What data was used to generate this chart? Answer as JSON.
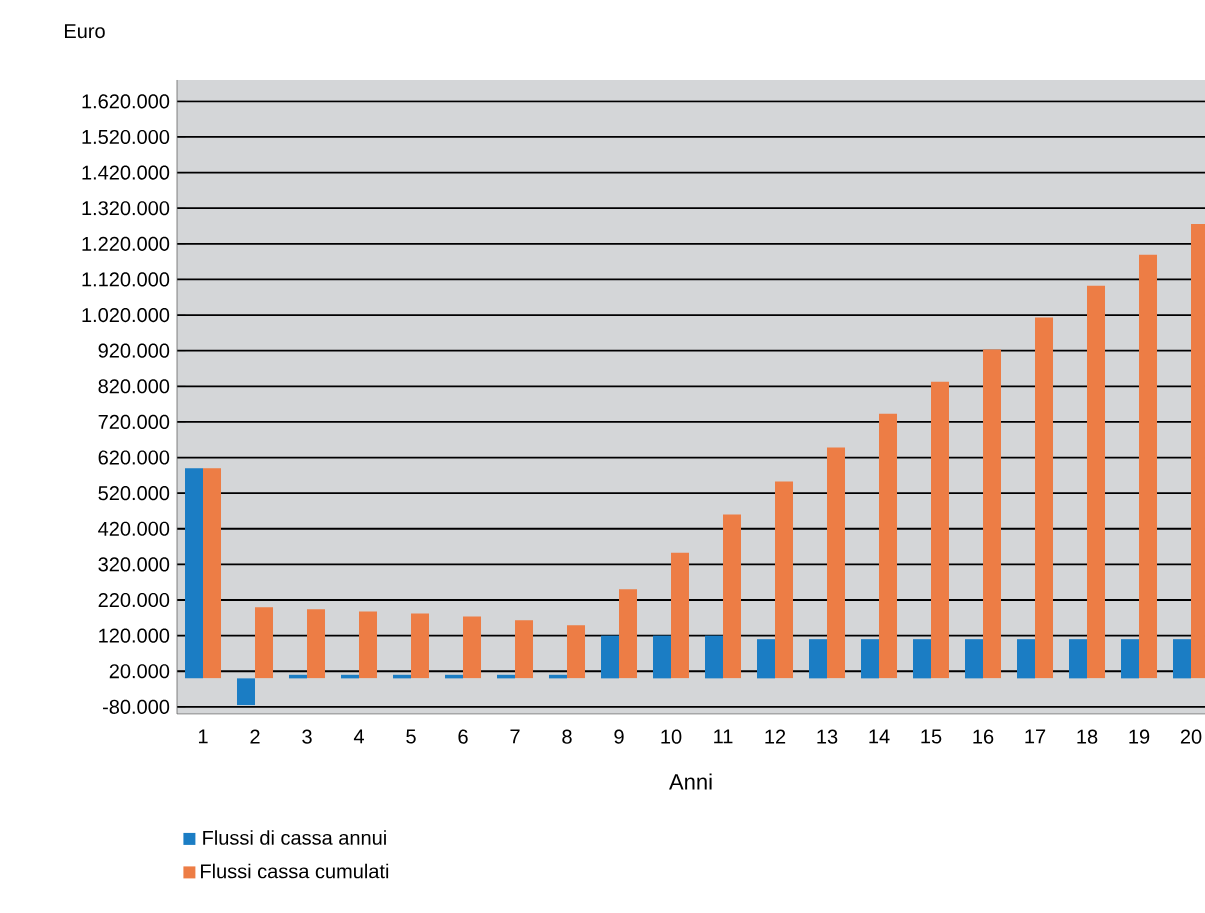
{
  "chart_data": {
    "type": "bar",
    "xlabel": "Anni",
    "ylabel": "Euro",
    "categories": [
      "1",
      "2",
      "3",
      "4",
      "5",
      "6",
      "7",
      "8",
      "9",
      "10",
      "11",
      "12",
      "13",
      "14",
      "15",
      "16",
      "17",
      "18",
      "19",
      "20"
    ],
    "series": [
      {
        "name": "Flussi di cassa annui",
        "color": "#1b7dc4",
        "values": [
          590000,
          -75000,
          10000,
          10000,
          10000,
          10000,
          10000,
          10000,
          120000,
          120000,
          120000,
          110000,
          110000,
          110000,
          110000,
          110000,
          110000,
          110000,
          110000,
          110000
        ]
      },
      {
        "name": "Flussi cassa cumulati",
        "color": "#ed7d45",
        "values": [
          590000,
          200000,
          194000,
          188000,
          182000,
          174000,
          163000,
          149000,
          250000,
          353000,
          460000,
          553000,
          648000,
          743000,
          833000,
          923000,
          1013000,
          1102000,
          1189000,
          1276000
        ]
      }
    ],
    "ylim": [
      -100000,
      1680000
    ],
    "yticks": [
      {
        "value": -80000,
        "label": "-80.000"
      },
      {
        "value": 20000,
        "label": "20.000"
      },
      {
        "value": 120000,
        "label": "120.000"
      },
      {
        "value": 220000,
        "label": "220.000"
      },
      {
        "value": 320000,
        "label": "320.000"
      },
      {
        "value": 420000,
        "label": "420.000"
      },
      {
        "value": 520000,
        "label": "520.000"
      },
      {
        "value": 620000,
        "label": "620.000"
      },
      {
        "value": 720000,
        "label": "720.000"
      },
      {
        "value": 820000,
        "label": "820.000"
      },
      {
        "value": 920000,
        "label": "920.000"
      },
      {
        "value": 1020000,
        "label": "1.020.000"
      },
      {
        "value": 1120000,
        "label": "1.120.000"
      },
      {
        "value": 1220000,
        "label": "1.220.000"
      },
      {
        "value": 1320000,
        "label": "1.320.000"
      },
      {
        "value": 1420000,
        "label": "1.420.000"
      },
      {
        "value": 1520000,
        "label": "1.520.000"
      },
      {
        "value": 1620000,
        "label": "1.620.000"
      }
    ],
    "grid": "y",
    "legend": "bottom left"
  }
}
